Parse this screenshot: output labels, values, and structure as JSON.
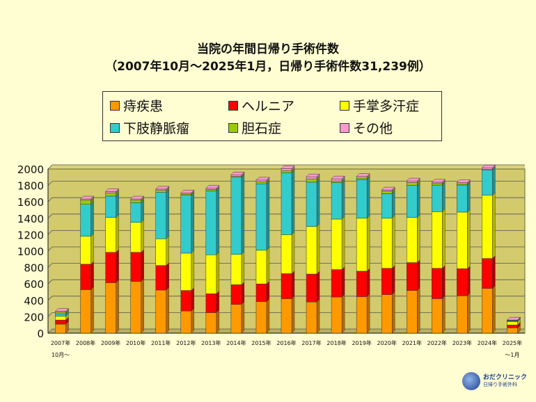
{
  "chart_data": {
    "type": "bar",
    "stacked": true,
    "title": "当院の年間日帰り手術件数",
    "subtitle": "（2007年10月～2025年1月，日帰り手術件数31,239例）",
    "categories": [
      "2007年",
      "2008年",
      "2009年",
      "2010年",
      "2011年",
      "2012年",
      "2013年",
      "2014年",
      "2015年",
      "2016年",
      "2017年",
      "2018年",
      "2019年",
      "2020年",
      "2021年",
      "2022年",
      "2023年",
      "2024年",
      "2025年"
    ],
    "category_sublabels": [
      "10月～",
      "",
      "",
      "",
      "",
      "",
      "",
      "",
      "",
      "",
      "",
      "",
      "",
      "",
      "",
      "",
      "",
      "",
      "～1月"
    ],
    "ylim": [
      0,
      2000
    ],
    "yticks": [
      0,
      200,
      400,
      600,
      800,
      1000,
      1200,
      1400,
      1600,
      1800,
      2000
    ],
    "grid": true,
    "legend_position": "top",
    "series": [
      {
        "name": "痔疾患",
        "color": "#ff9900",
        "values": [
          110,
          530,
          615,
          630,
          525,
          270,
          250,
          350,
          385,
          420,
          380,
          440,
          445,
          470,
          520,
          420,
          455,
          545,
          65
        ]
      },
      {
        "name": "ヘルニア",
        "color": "#ff0000",
        "values": [
          50,
          310,
          370,
          355,
          300,
          250,
          230,
          240,
          215,
          305,
          340,
          335,
          310,
          320,
          340,
          370,
          330,
          365,
          35
        ]
      },
      {
        "name": "手掌多汗症",
        "color": "#ffff00",
        "values": [
          45,
          340,
          425,
          365,
          325,
          455,
          475,
          370,
          410,
          475,
          580,
          615,
          645,
          610,
          550,
          690,
          690,
          770,
          40
        ]
      },
      {
        "name": "下肢静脈瘤",
        "color": "#33cccc",
        "values": [
          30,
          390,
          260,
          240,
          565,
          705,
          780,
          940,
          810,
          755,
          540,
          445,
          470,
          300,
          390,
          325,
          330,
          310,
          10
        ]
      },
      {
        "name": "胆石症",
        "color": "#99cc00",
        "values": [
          20,
          50,
          40,
          30,
          25,
          15,
          15,
          10,
          25,
          25,
          40,
          20,
          20,
          30,
          35,
          20,
          15,
          5,
          5
        ]
      },
      {
        "name": "その他",
        "color": "#ff99cc",
        "values": [
          10,
          15,
          15,
          15,
          15,
          15,
          15,
          20,
          20,
          25,
          25,
          25,
          20,
          15,
          20,
          15,
          15,
          20,
          5
        ]
      }
    ]
  },
  "logo": {
    "name": "おだクリニック",
    "subtitle": "日帰り手術外科"
  }
}
